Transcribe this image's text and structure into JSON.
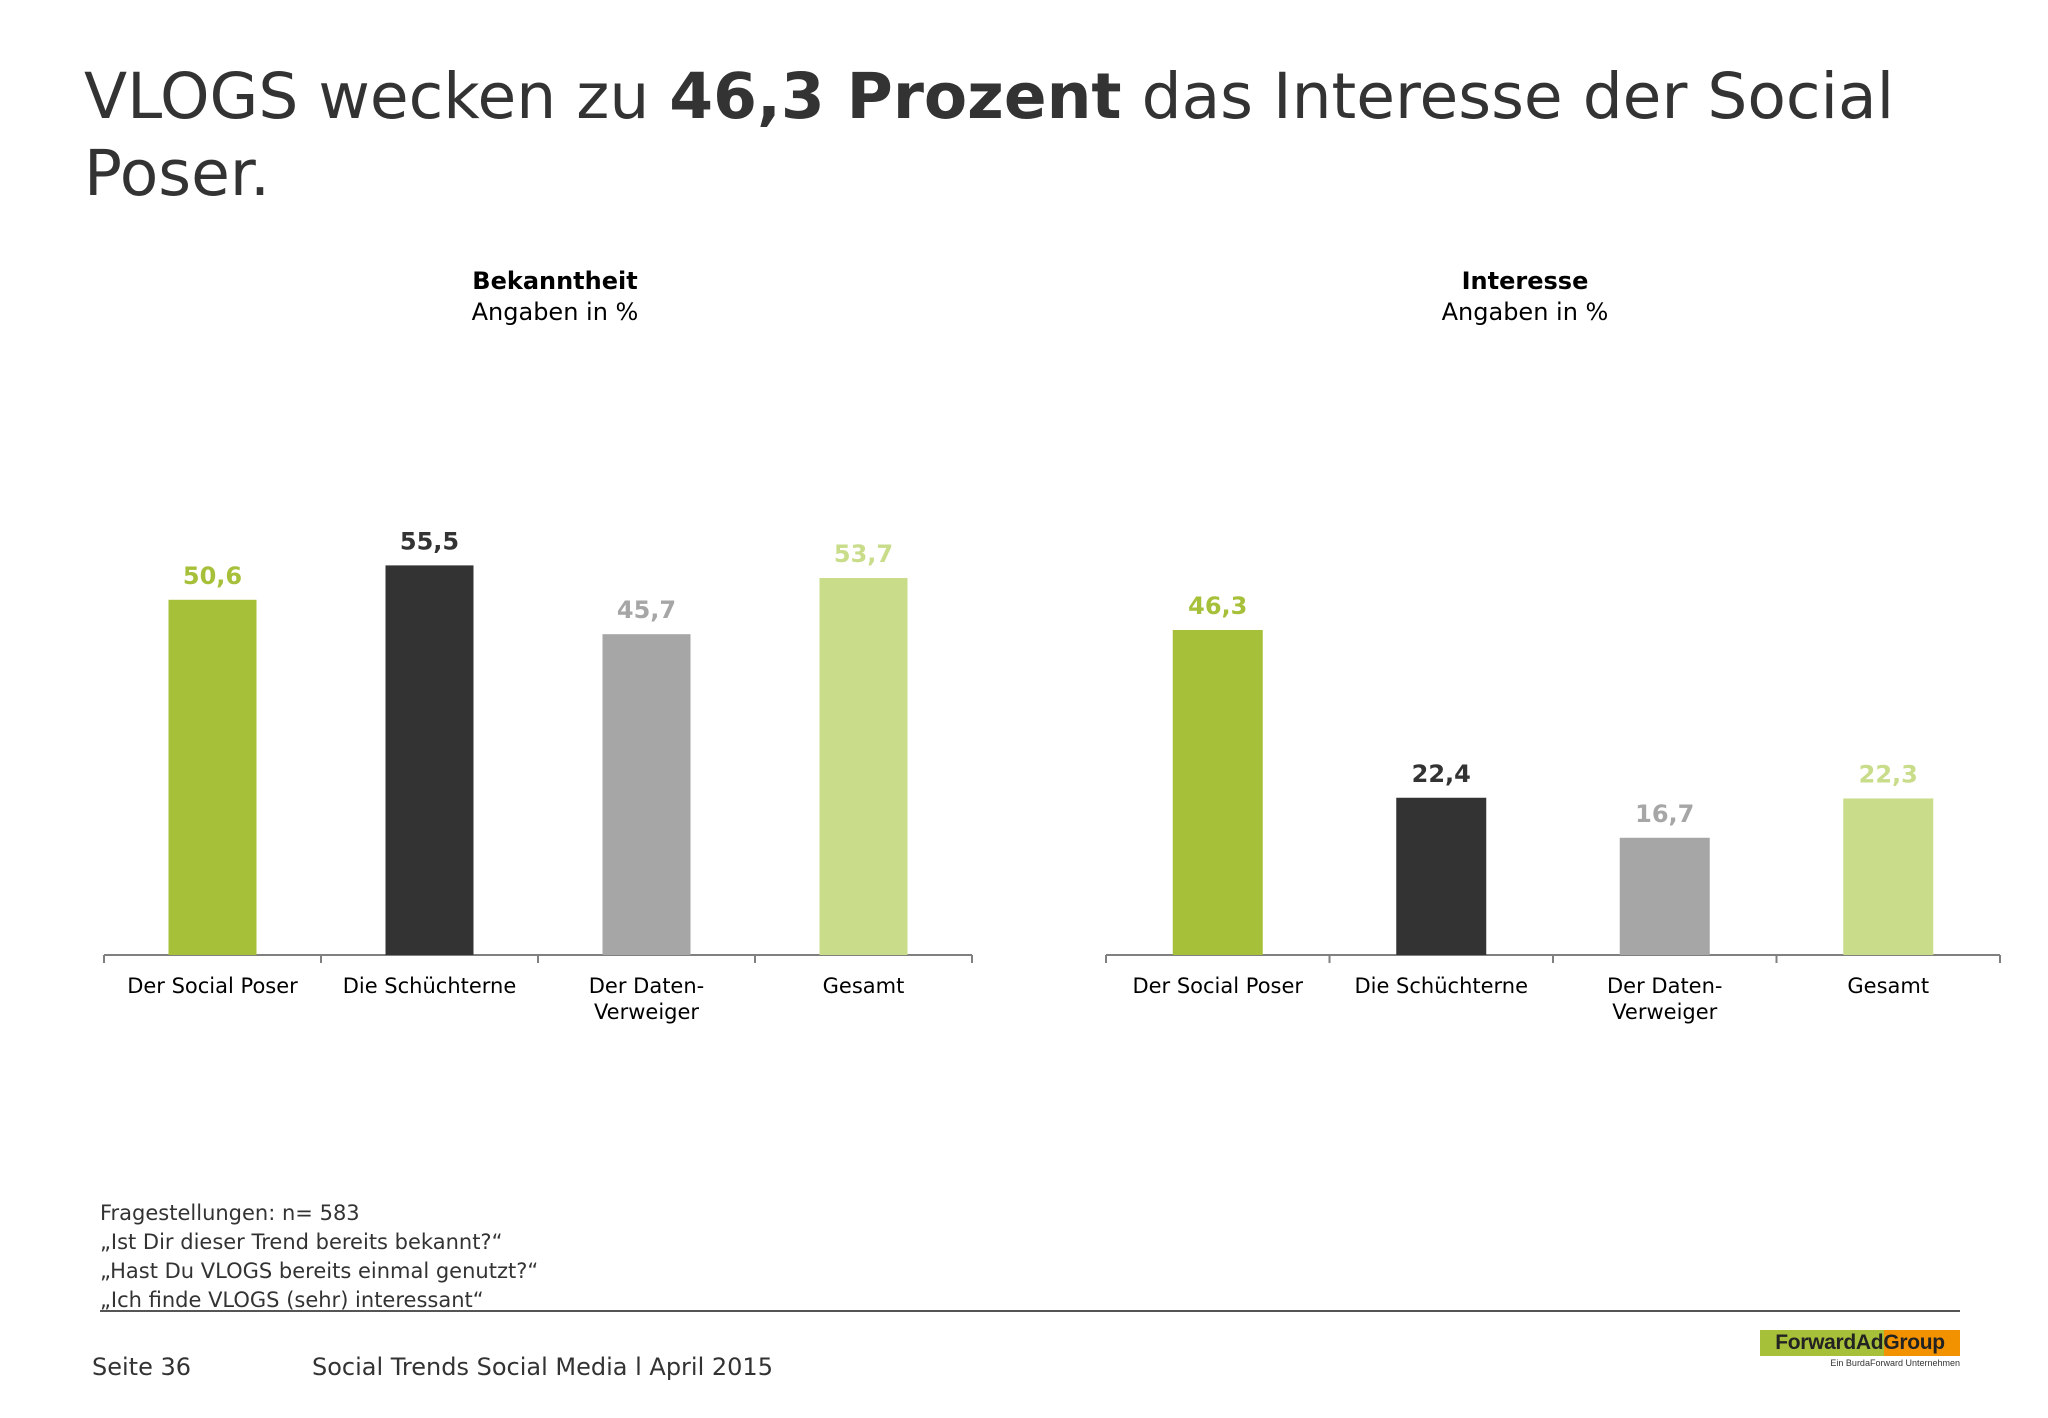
{
  "title": {
    "part1": "VLOGS wecken zu ",
    "bold": "46,3 Prozent",
    "part2": " das Interesse der Social Poser."
  },
  "chart_data": [
    {
      "type": "bar",
      "title": "Bekanntheit",
      "subtitle": "Angaben in %",
      "categories": [
        "Der Social Poser",
        "Die Schüchterne",
        "Der Daten-\nVerweiger",
        "Gesamt"
      ],
      "values": [
        50.6,
        55.5,
        45.7,
        53.7
      ],
      "value_labels": [
        "50,6",
        "55,5",
        "45,7",
        "53,7"
      ],
      "colors": [
        "#a6c03a",
        "#333333",
        "#a6a6a6",
        "#c9dc89"
      ],
      "ylim": [
        0,
        60
      ]
    },
    {
      "type": "bar",
      "title": "Interesse",
      "subtitle": "Angaben in %",
      "categories": [
        "Der Social Poser",
        "Die Schüchterne",
        "Der Daten-\nVerweiger",
        "Gesamt"
      ],
      "values": [
        46.3,
        22.4,
        16.7,
        22.3
      ],
      "value_labels": [
        "46,3",
        "22,4",
        "16,7",
        "22,3"
      ],
      "colors": [
        "#a6c03a",
        "#333333",
        "#a6a6a6",
        "#c9dc89"
      ],
      "ylim": [
        0,
        60
      ]
    }
  ],
  "footnote": {
    "lines": [
      "Fragestellungen: n= 583",
      "„Ist Dir dieser Trend bereits bekannt?“",
      "„Hast Du VLOGS bereits einmal genutzt?“",
      "„Ich finde VLOGS (sehr) interessant“"
    ]
  },
  "footer": {
    "page": "Seite 36",
    "source": "Social Trends Social Media l April 2015",
    "logo": "ForwardAdGroup",
    "logo_sub": "Ein BurdaForward Unternehmen"
  }
}
